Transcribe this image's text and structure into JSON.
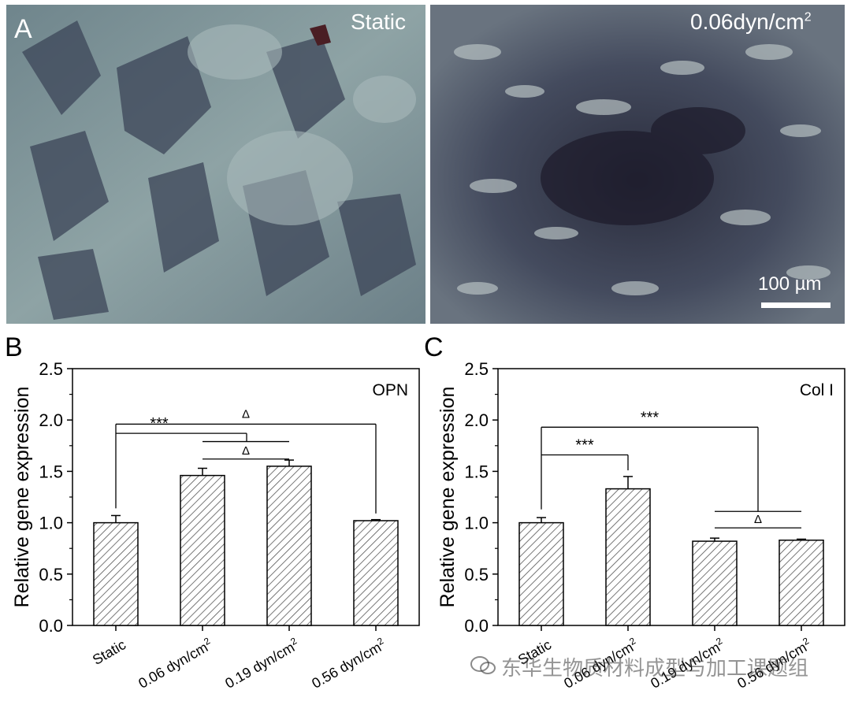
{
  "panels": {
    "a_letter": "A",
    "a_left_label": "Static",
    "a_right_label": "0.06dyn/cm",
    "a_right_label_sup": "2",
    "scale_text": "100 µm",
    "b_letter": "B",
    "c_letter": "C"
  },
  "watermark": "东华生物质材料成型与加工课题组",
  "chart_data": [
    {
      "type": "bar",
      "panel": "B",
      "gene": "OPN",
      "ylabel": "Relative gene expression",
      "ylim": [
        0,
        2.5
      ],
      "yticks": [
        "0.0",
        "0.5",
        "1.0",
        "1.5",
        "2.0",
        "2.5"
      ],
      "categories": [
        "Static",
        "0.06 dyn/cm2",
        "0.19 dyn/cm2",
        "0.56 dyn/cm2"
      ],
      "values": [
        1.0,
        1.46,
        1.55,
        1.02
      ],
      "errors": [
        0.07,
        0.07,
        0.06,
        0.01
      ],
      "significance": [
        {
          "label": "***",
          "from": 0,
          "to": 1
        },
        {
          "label": "Δ",
          "from": 0,
          "to": 3
        },
        {
          "label": "Δ",
          "from": 1,
          "to": 2
        }
      ]
    },
    {
      "type": "bar",
      "panel": "C",
      "gene": "Col I",
      "ylabel": "Relative gene expression",
      "ylim": [
        0,
        2.5
      ],
      "yticks": [
        "0.0",
        "0.5",
        "1.0",
        "1.5",
        "2.0",
        "2.5"
      ],
      "categories": [
        "Static",
        "0.06 dyn/cm2",
        "0.19 dyn/cm2",
        "0.56 dyn/cm2"
      ],
      "values": [
        1.0,
        1.33,
        0.82,
        0.83
      ],
      "errors": [
        0.05,
        0.12,
        0.03,
        0.01
      ],
      "significance": [
        {
          "label": "***",
          "from": 0,
          "to": 1
        },
        {
          "label": "***",
          "from": 0,
          "to": "2-3"
        },
        {
          "label": "Δ",
          "from": 2,
          "to": 3
        }
      ]
    }
  ],
  "colors": {
    "static_bg": "#7f949a",
    "shear_bg": "#3f4658",
    "cell_dark": "#2b2f42",
    "cell_light": "#a8b6b7",
    "bar_outline": "#000000"
  }
}
